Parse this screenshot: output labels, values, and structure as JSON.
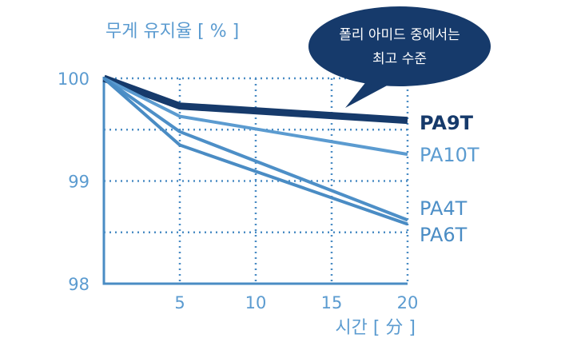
{
  "chart_data": {
    "type": "line",
    "y_label": "무게 유지율 [ % ]",
    "x_label": "시간 [ 分 ]",
    "annotation": [
      "폴리 아미드 중에서는",
      "최고 수준"
    ],
    "x": [
      0,
      5,
      20
    ],
    "xlim": [
      0,
      20
    ],
    "xticks": [
      5,
      10,
      15,
      20
    ],
    "ylim": [
      98,
      100
    ],
    "yticks": [
      98,
      99,
      100
    ],
    "minor_yticks": [
      98.5,
      99.5
    ],
    "grid": true,
    "series": [
      {
        "name": "PA9T",
        "color": "#163a6b",
        "values": [
          100,
          99.73,
          99.59
        ]
      },
      {
        "name": "PA10T",
        "color": "#5b9bd0",
        "values": [
          100,
          99.63,
          99.26
        ]
      },
      {
        "name": "PA4T",
        "color": "#4d8fc7",
        "values": [
          100,
          99.48,
          98.62
        ]
      },
      {
        "name": "PA6T",
        "color": "#4a8cc4",
        "values": [
          100,
          99.35,
          98.58
        ]
      }
    ]
  }
}
